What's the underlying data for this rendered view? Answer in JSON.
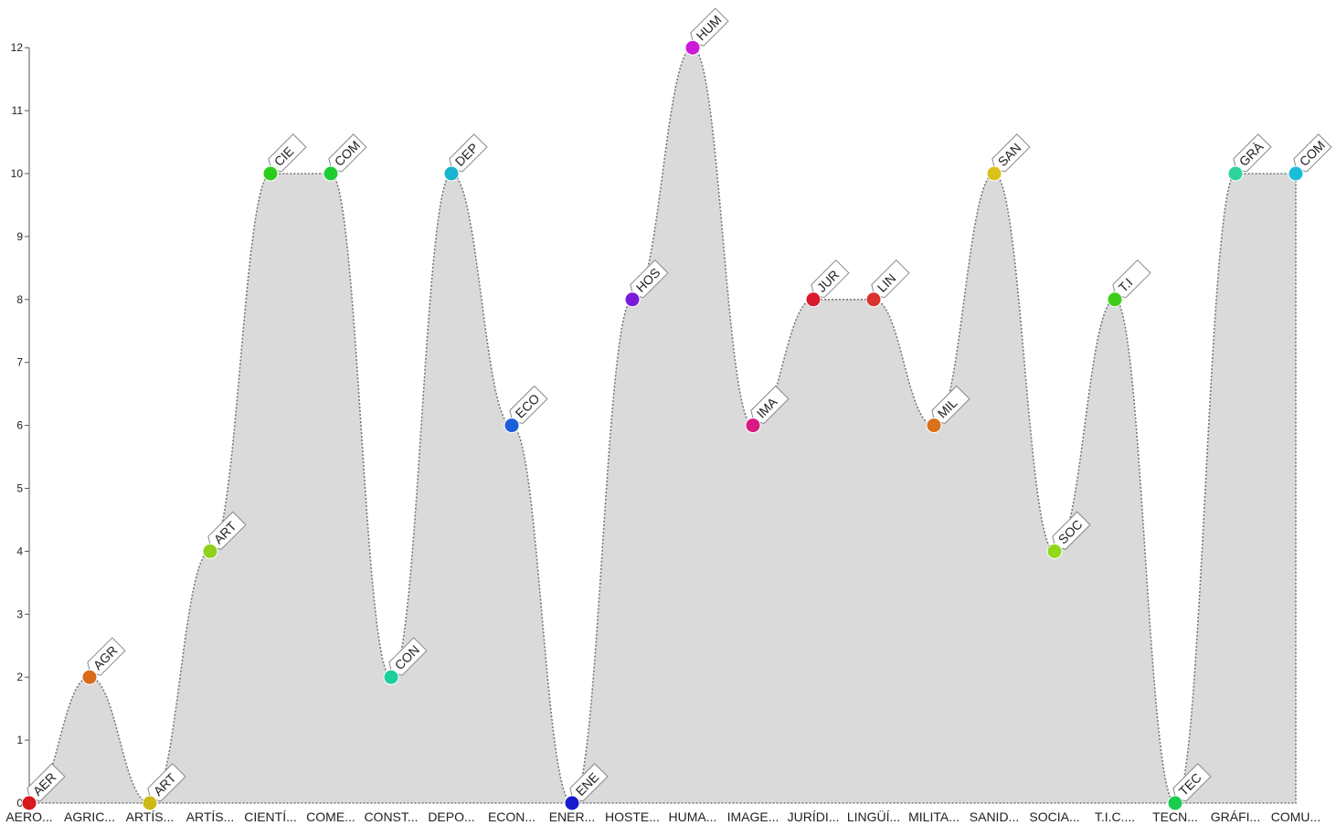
{
  "chart_data": {
    "type": "area",
    "yticks": [
      0,
      1,
      2,
      3,
      4,
      5,
      6,
      7,
      8,
      9,
      10,
      11,
      12
    ],
    "ylim": [
      0,
      12
    ],
    "categories": [
      "AERO...",
      "AGRIC...",
      "ARTÍS...",
      "ARTÍS...",
      "CIENTÍ...",
      "COME...",
      "CONST...",
      "DEPO...",
      "ECON...",
      "ENER...",
      "HOSTE...",
      "HUMA...",
      "IMAGE...",
      "JURÍDI...",
      "LINGÜÍ...",
      "MILITA...",
      "SANID...",
      "SOCIA...",
      "T.I.C....",
      "TECN...",
      "GRÁFI...",
      "COMU..."
    ],
    "point_labels": [
      "AER",
      "AGR",
      "ART",
      "ART",
      "CIE",
      "COM",
      "CON",
      "DEP",
      "ECO",
      "ENE",
      "HOS",
      "HUM",
      "IMA",
      "JUR",
      "LIN",
      "MIL",
      "SAN",
      "SOC",
      "T.I",
      "TEC",
      "GRÀ",
      "COM"
    ],
    "values": [
      0,
      2,
      0,
      4,
      10,
      10,
      2,
      10,
      6,
      0,
      8,
      12,
      6,
      8,
      8,
      6,
      10,
      4,
      8,
      0,
      10,
      10
    ],
    "colors": [
      "#d7191c",
      "#d96b1a",
      "#cdb816",
      "#8fd11a",
      "#2ecc1a",
      "#1ecc33",
      "#1ad09b",
      "#1ab3d0",
      "#1a5fd9",
      "#1a1acc",
      "#7a1ad9",
      "#cc1ad9",
      "#d91a84",
      "#d91a2e",
      "#d9332e",
      "#d9701a",
      "#d9c21a",
      "#8fd91a",
      "#3ecc1a",
      "#1acc4f",
      "#2ed49c",
      "#1abcd9"
    ],
    "grid": false,
    "legend": "none"
  }
}
